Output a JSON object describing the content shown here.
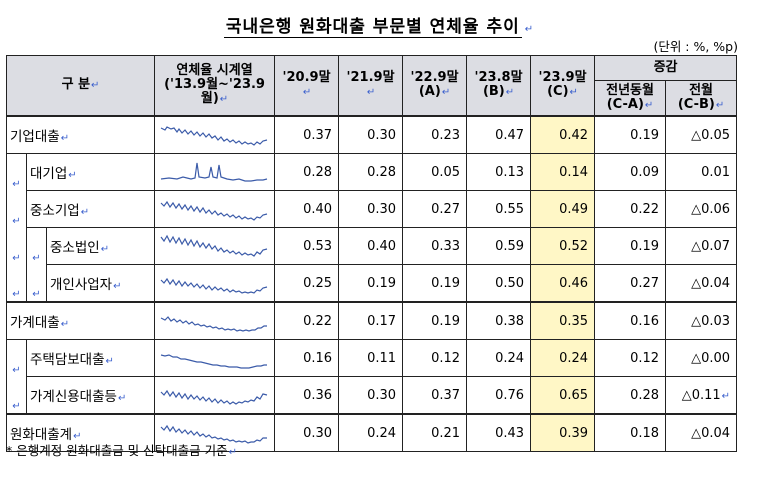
{
  "title": "국내은행 원화대출 부문별 연체율 추이",
  "unit": "(단위 : %, %p)",
  "header": {
    "category": "구  분",
    "spark_line1": "연체율 시계열",
    "spark_line2": "('13.9월~'23.9월)",
    "c1": "'20.9말",
    "c2": "'21.9말",
    "c3_line1": "'22.9말",
    "c3_line2": "(A)",
    "c4_line1": "'23.8말",
    "c4_line2": "(B)",
    "c5_line1": "'23.9말",
    "c5_line2": "(C)",
    "change": "증감",
    "yoy_line1": "전년동월",
    "yoy_line2": "(C-A)",
    "mom_line1": "전월",
    "mom_line2": "(C-B)"
  },
  "rows": [
    {
      "label": "기업대출",
      "v1": "0.37",
      "v2": "0.30",
      "v3": "0.23",
      "v4": "0.47",
      "v5": "0.42",
      "yoy": "0.19",
      "mom": "△0.05"
    },
    {
      "label": "대기업",
      "v1": "0.28",
      "v2": "0.28",
      "v3": "0.05",
      "v4": "0.13",
      "v5": "0.14",
      "yoy": "0.09",
      "mom": "0.01"
    },
    {
      "label": "중소기업",
      "v1": "0.40",
      "v2": "0.30",
      "v3": "0.27",
      "v4": "0.55",
      "v5": "0.49",
      "yoy": "0.22",
      "mom": "△0.06"
    },
    {
      "label": "중소법인",
      "v1": "0.53",
      "v2": "0.40",
      "v3": "0.33",
      "v4": "0.59",
      "v5": "0.52",
      "yoy": "0.19",
      "mom": "△0.07"
    },
    {
      "label": "개인사업자",
      "v1": "0.25",
      "v2": "0.19",
      "v3": "0.19",
      "v4": "0.50",
      "v5": "0.46",
      "yoy": "0.27",
      "mom": "△0.04"
    },
    {
      "label": "가계대출",
      "v1": "0.22",
      "v2": "0.17",
      "v3": "0.19",
      "v4": "0.38",
      "v5": "0.35",
      "yoy": "0.16",
      "mom": "△0.03"
    },
    {
      "label": "주택담보대출",
      "v1": "0.16",
      "v2": "0.11",
      "v3": "0.12",
      "v4": "0.24",
      "v5": "0.24",
      "yoy": "0.12",
      "mom": "△0.00"
    },
    {
      "label": "가계신용대출등",
      "v1": "0.36",
      "v2": "0.30",
      "v3": "0.37",
      "v4": "0.76",
      "v5": "0.65",
      "yoy": "0.28",
      "mom": "△0.11"
    },
    {
      "label": "원화대출계",
      "v1": "0.30",
      "v2": "0.24",
      "v3": "0.21",
      "v4": "0.43",
      "v5": "0.39",
      "yoy": "0.18",
      "mom": "△0.04"
    }
  ],
  "footnote": "* 은행계정 원화대출금 및 신탁대출금 기준"
}
